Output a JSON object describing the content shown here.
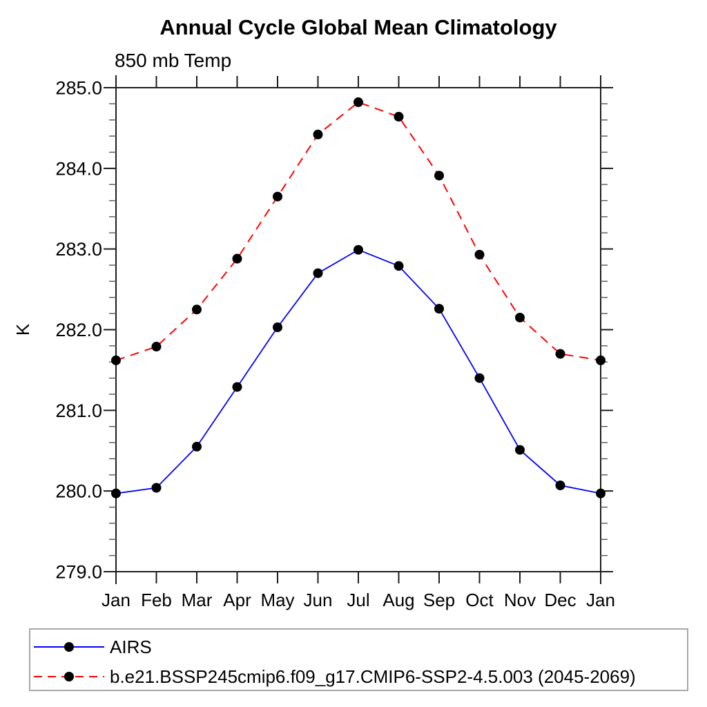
{
  "chart_data": {
    "type": "line",
    "title": "Annual Cycle Global Mean Climatology",
    "subtitle": "850 mb Temp",
    "xlabel": "",
    "ylabel": "K",
    "x_categories": [
      "Jan",
      "Feb",
      "Mar",
      "Apr",
      "May",
      "Jun",
      "Jul",
      "Aug",
      "Sep",
      "Oct",
      "Nov",
      "Dec",
      "Jan"
    ],
    "ylim": [
      279.0,
      285.0
    ],
    "y_tick_step": 1.0,
    "y_minor_tick_step": 0.2,
    "y_tick_labels": [
      "285.0",
      "284.0",
      "283.0",
      "282.0",
      "281.0",
      "280.0",
      "279.0"
    ],
    "grid": false,
    "legend_position": "bottom-left-box",
    "series": [
      {
        "name": "AIRS",
        "line_color": "#0000ff",
        "line_style": "solid",
        "marker": "filled-circle",
        "marker_color": "#000000",
        "values": [
          279.97,
          280.04,
          280.55,
          281.29,
          282.03,
          282.7,
          282.99,
          282.79,
          282.26,
          281.4,
          280.51,
          280.07,
          279.97
        ]
      },
      {
        "name": "b.e21.BSSP245cmip6.f09_g17.CMIP6-SSP2-4.5.003 (2045-2069)",
        "line_color": "#ff0000",
        "line_style": "dashed",
        "marker": "filled-circle",
        "marker_color": "#000000",
        "values": [
          281.62,
          281.79,
          282.25,
          282.88,
          283.65,
          284.42,
          284.82,
          284.64,
          283.91,
          282.93,
          282.15,
          281.7,
          281.62
        ]
      }
    ]
  }
}
